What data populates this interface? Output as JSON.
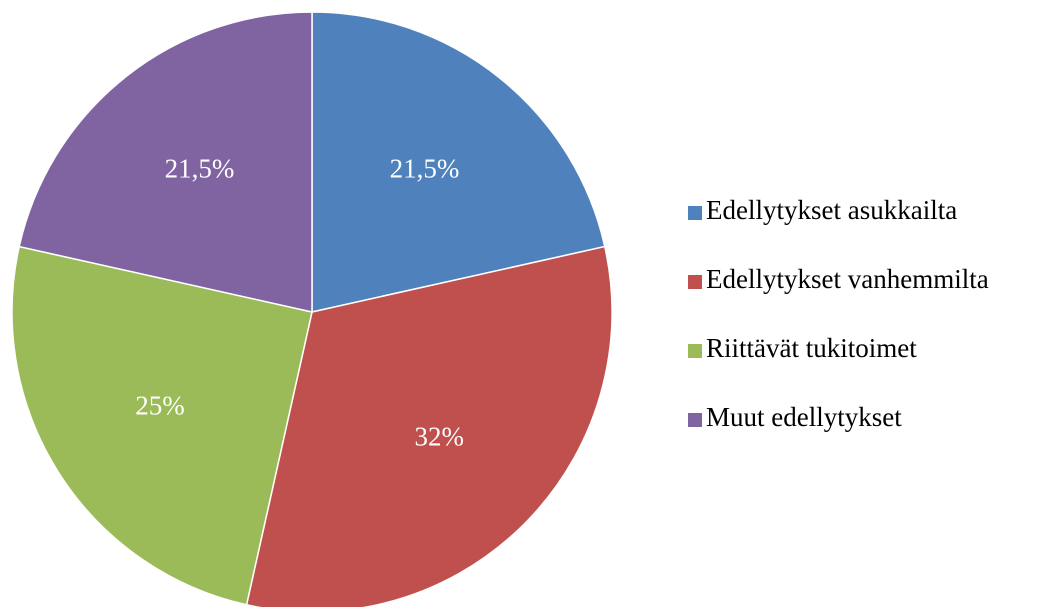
{
  "chart_data": {
    "type": "pie",
    "categories": [
      "Edellytykset asukkailta",
      "Edellytykset vanhemmilta",
      "Riittävät tukitoimet",
      "Muut edellytykset"
    ],
    "values": [
      21.5,
      32,
      25,
      21.5
    ],
    "value_labels": [
      "21,5%",
      "32%",
      "25%",
      "21,5%"
    ],
    "colors": [
      "#4f81bd",
      "#c0504d",
      "#9bbb59",
      "#8064a2"
    ],
    "legend": "right"
  }
}
